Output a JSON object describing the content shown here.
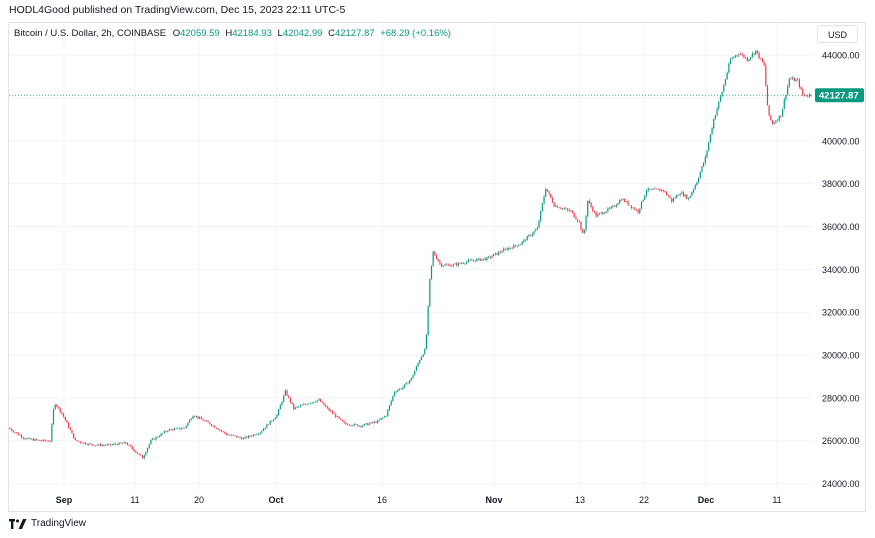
{
  "header": {
    "published_by": "HODL4Good published on TradingView.com, Dec 15, 2023 22:11 UTC-5"
  },
  "legend": {
    "symbol": "Bitcoin / U.S. Dollar, 2h, COINBASE",
    "open_label": "O",
    "open": "42059.59",
    "high_label": "H",
    "high": "42184.93",
    "low_label": "L",
    "low": "42042.99",
    "close_label": "C",
    "close": "42127.87",
    "change": "+68.29 (+0.16%)"
  },
  "currency_button": "USD",
  "footer": {
    "logo_icon": "tradingview-logo-icon",
    "brand": "TradingView"
  },
  "colors": {
    "up": "#089981",
    "down": "#f23645",
    "last_price_bg": "#089981",
    "grid": "#f0f3fa"
  },
  "chart_data": {
    "type": "candlestick",
    "symbol": "Bitcoin / U.S. Dollar",
    "interval": "2h",
    "exchange": "COINBASE",
    "y_ticks": [
      "24000.00",
      "26000.00",
      "28000.00",
      "30000.00",
      "32000.00",
      "34000.00",
      "36000.00",
      "38000.00",
      "40000.00",
      "42000.00",
      "44000.00"
    ],
    "ylim": [
      23700,
      45500
    ],
    "x_ticks": [
      "Sep",
      "11",
      "20",
      "Oct",
      "16",
      "Nov",
      "13",
      "22",
      "Dec",
      "11"
    ],
    "last_price": "42127.87",
    "grid": true,
    "price_path": [
      {
        "d": 0,
        "p": 26600
      },
      {
        "d": 2,
        "p": 26100
      },
      {
        "d": 4,
        "p": 26000
      },
      {
        "d": 5,
        "p": 26000
      },
      {
        "d": 5.5,
        "p": 27800
      },
      {
        "d": 6.5,
        "p": 27200
      },
      {
        "d": 8,
        "p": 26000
      },
      {
        "d": 10,
        "p": 25800
      },
      {
        "d": 12,
        "p": 25800
      },
      {
        "d": 14,
        "p": 25900
      },
      {
        "d": 16,
        "p": 25200
      },
      {
        "d": 17,
        "p": 26000
      },
      {
        "d": 19,
        "p": 26500
      },
      {
        "d": 21,
        "p": 26600
      },
      {
        "d": 22,
        "p": 27200
      },
      {
        "d": 24,
        "p": 26800
      },
      {
        "d": 26,
        "p": 26300
      },
      {
        "d": 28,
        "p": 26100
      },
      {
        "d": 30,
        "p": 26400
      },
      {
        "d": 32,
        "p": 27200
      },
      {
        "d": 33,
        "p": 28300
      },
      {
        "d": 34,
        "p": 27500
      },
      {
        "d": 36,
        "p": 27800
      },
      {
        "d": 37,
        "p": 27900
      },
      {
        "d": 38,
        "p": 27500
      },
      {
        "d": 40,
        "p": 26800
      },
      {
        "d": 42,
        "p": 26700
      },
      {
        "d": 44,
        "p": 26900
      },
      {
        "d": 45,
        "p": 27200
      },
      {
        "d": 46,
        "p": 28300
      },
      {
        "d": 47,
        "p": 28500
      },
      {
        "d": 48,
        "p": 28900
      },
      {
        "d": 49,
        "p": 29800
      },
      {
        "d": 49.7,
        "p": 30300
      },
      {
        "d": 50.2,
        "p": 33500
      },
      {
        "d": 50.6,
        "p": 34800
      },
      {
        "d": 51.5,
        "p": 34200
      },
      {
        "d": 53,
        "p": 34200
      },
      {
        "d": 55,
        "p": 34400
      },
      {
        "d": 57,
        "p": 34500
      },
      {
        "d": 59,
        "p": 34900
      },
      {
        "d": 61,
        "p": 35200
      },
      {
        "d": 63,
        "p": 35900
      },
      {
        "d": 64,
        "p": 37800
      },
      {
        "d": 65,
        "p": 37000
      },
      {
        "d": 67,
        "p": 36700
      },
      {
        "d": 68,
        "p": 36200
      },
      {
        "d": 68.5,
        "p": 35500
      },
      {
        "d": 69,
        "p": 37200
      },
      {
        "d": 70,
        "p": 36500
      },
      {
        "d": 72,
        "p": 36900
      },
      {
        "d": 73,
        "p": 37300
      },
      {
        "d": 75,
        "p": 36700
      },
      {
        "d": 76,
        "p": 37700
      },
      {
        "d": 78,
        "p": 37700
      },
      {
        "d": 79,
        "p": 37200
      },
      {
        "d": 80,
        "p": 37600
      },
      {
        "d": 81,
        "p": 37300
      },
      {
        "d": 82,
        "p": 38100
      },
      {
        "d": 83,
        "p": 39200
      },
      {
        "d": 84,
        "p": 41000
      },
      {
        "d": 85,
        "p": 42300
      },
      {
        "d": 86,
        "p": 43800
      },
      {
        "d": 87,
        "p": 44100
      },
      {
        "d": 88,
        "p": 43800
      },
      {
        "d": 89,
        "p": 44200
      },
      {
        "d": 90,
        "p": 43500
      },
      {
        "d": 90.5,
        "p": 41200
      },
      {
        "d": 91,
        "p": 40800
      },
      {
        "d": 92,
        "p": 41200
      },
      {
        "d": 93,
        "p": 42900
      },
      {
        "d": 94,
        "p": 42800
      },
      {
        "d": 94.6,
        "p": 42128
      }
    ]
  }
}
